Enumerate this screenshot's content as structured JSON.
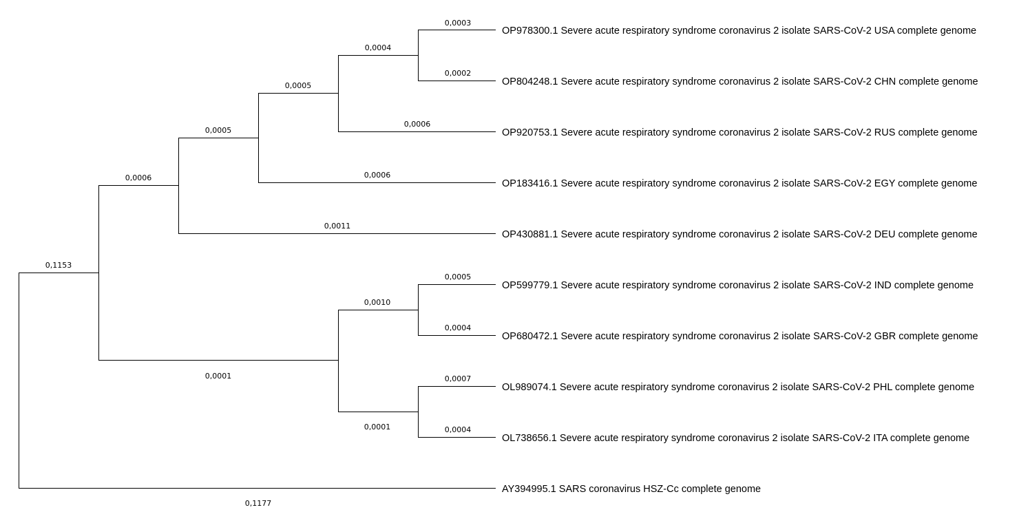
{
  "tree": {
    "taxa": [
      {
        "id": "usa",
        "label": "OP978300.1 Severe acute respiratory syndrome coronavirus 2 isolate SARS-CoV-2 USA complete genome",
        "branch_length": "0,0003"
      },
      {
        "id": "chn",
        "label": "OP804248.1 Severe acute respiratory syndrome coronavirus 2 isolate SARS-CoV-2 CHN complete genome",
        "branch_length": "0,0002"
      },
      {
        "id": "rus",
        "label": "OP920753.1 Severe acute respiratory syndrome coronavirus 2 isolate SARS-CoV-2 RUS complete genome",
        "branch_length": "0,0006"
      },
      {
        "id": "egy",
        "label": "OP183416.1 Severe acute respiratory syndrome coronavirus 2 isolate SARS-CoV-2 EGY complete genome",
        "branch_length": "0,0006"
      },
      {
        "id": "deu",
        "label": "OP430881.1 Severe acute respiratory syndrome coronavirus 2 isolate SARS-CoV-2 DEU complete genome",
        "branch_length": "0,0011"
      },
      {
        "id": "ind",
        "label": "OP599779.1 Severe acute respiratory syndrome coronavirus 2 isolate SARS-CoV-2 IND complete genome",
        "branch_length": "0,0005"
      },
      {
        "id": "gbr",
        "label": "OP680472.1 Severe acute respiratory syndrome coronavirus 2 isolate SARS-CoV-2 GBR complete genome",
        "branch_length": "0,0004"
      },
      {
        "id": "phl",
        "label": "OL989074.1 Severe acute respiratory syndrome coronavirus 2 isolate SARS-CoV-2 PHL complete genome",
        "branch_length": "0,0007"
      },
      {
        "id": "ita",
        "label": "OL738656.1 Severe acute respiratory syndrome coronavirus 2 isolate SARS-CoV-2 ITA complete genome",
        "branch_length": "0,0004"
      },
      {
        "id": "outgroup",
        "label": "AY394995.1 SARS coronavirus HSZ-Cc complete genome",
        "branch_length": "0,1177"
      }
    ],
    "internal_branches": {
      "usa_chn": "0,0004",
      "usa_chn_rus": "0,0005",
      "usa_chn_rus_egy": "0,0005",
      "north_clade": "0,0006",
      "ind_gbr": "0,0010",
      "phl_ita": "0,0001",
      "south_clade": "0,0001",
      "ingroup": "0,1153"
    }
  }
}
